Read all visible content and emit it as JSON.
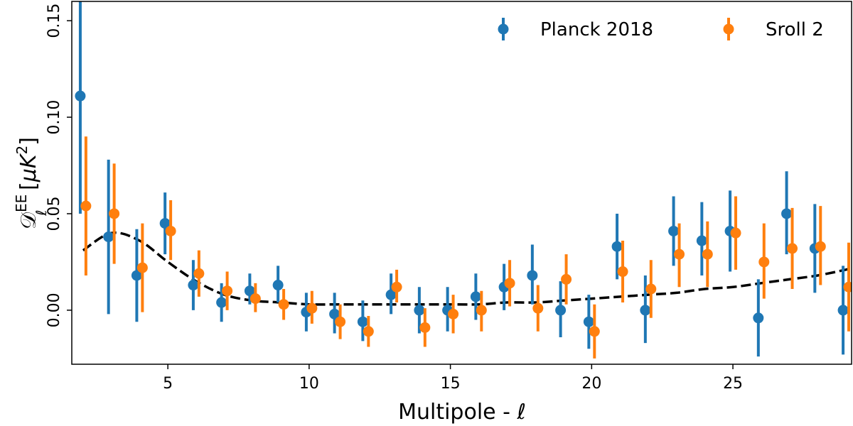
{
  "chart_data": {
    "type": "scatter",
    "title": "",
    "xlabel": "Multipole - ℓ",
    "ylabel": "𝒟ℓ^EE [μK²]",
    "ylabel_parts": {
      "symbol": "𝒟",
      "sub": "ℓ",
      "sup": "EE",
      "unit_open": " [",
      "unit_mu": "μK",
      "unit_sup": "2",
      "unit_close": "]"
    },
    "xlim": [
      1.6,
      29.2
    ],
    "ylim": [
      -0.028,
      0.16
    ],
    "xticks": [
      5,
      10,
      15,
      20,
      25
    ],
    "xtick_labels": [
      "5",
      "10",
      "15",
      "20",
      "25"
    ],
    "yticks": [
      0.0,
      0.05,
      0.1,
      0.15
    ],
    "ytick_labels": [
      "0.00",
      "0.05",
      "0.10",
      "0.15"
    ],
    "legend_position": "top-right",
    "series": [
      {
        "name": "Planck 2018",
        "color": "#1f77b4",
        "x_offset": -0.1,
        "ell": [
          2,
          3,
          4,
          5,
          6,
          7,
          8,
          9,
          10,
          11,
          12,
          13,
          14,
          15,
          16,
          17,
          18,
          19,
          20,
          21,
          22,
          23,
          24,
          25,
          26,
          27,
          28,
          29
        ],
        "values": [
          0.111,
          0.038,
          0.018,
          0.045,
          0.013,
          0.004,
          0.01,
          0.013,
          -0.001,
          -0.002,
          -0.006,
          0.008,
          0.0,
          0.0,
          0.007,
          0.012,
          0.018,
          0.0,
          -0.006,
          0.033,
          0.0,
          0.041,
          0.036,
          0.041,
          -0.004,
          0.05,
          0.032,
          0.0
        ],
        "err_low": [
          0.061,
          0.04,
          0.024,
          0.016,
          0.013,
          0.01,
          0.007,
          0.009,
          0.01,
          0.01,
          0.01,
          0.01,
          0.012,
          0.011,
          0.012,
          0.012,
          0.015,
          0.014,
          0.014,
          0.017,
          0.017,
          0.018,
          0.018,
          0.021,
          0.02,
          0.021,
          0.023,
          0.023
        ],
        "err_high": [
          0.059,
          0.04,
          0.024,
          0.016,
          0.013,
          0.01,
          0.009,
          0.01,
          0.01,
          0.011,
          0.011,
          0.011,
          0.012,
          0.012,
          0.012,
          0.012,
          0.016,
          0.015,
          0.014,
          0.017,
          0.018,
          0.018,
          0.02,
          0.021,
          0.02,
          0.022,
          0.023,
          0.023
        ]
      },
      {
        "name": "Sroll 2",
        "color": "#ff7f0e",
        "x_offset": 0.1,
        "ell": [
          2,
          3,
          4,
          5,
          6,
          7,
          8,
          9,
          10,
          11,
          12,
          13,
          14,
          15,
          16,
          17,
          18,
          19,
          20,
          21,
          22,
          23,
          24,
          25,
          26,
          27,
          28,
          29
        ],
        "values": [
          0.054,
          0.05,
          0.022,
          0.041,
          0.019,
          0.01,
          0.006,
          0.003,
          0.001,
          -0.006,
          -0.011,
          0.012,
          -0.009,
          -0.002,
          0.0,
          0.014,
          0.001,
          0.016,
          -0.011,
          0.02,
          0.011,
          0.029,
          0.029,
          0.04,
          0.025,
          0.032,
          0.033,
          0.012
        ],
        "err_low": [
          0.036,
          0.026,
          0.023,
          0.015,
          0.012,
          0.01,
          0.007,
          0.008,
          0.008,
          0.009,
          0.008,
          0.008,
          0.01,
          0.01,
          0.011,
          0.012,
          0.012,
          0.013,
          0.014,
          0.016,
          0.015,
          0.017,
          0.017,
          0.019,
          0.019,
          0.021,
          0.02,
          0.023
        ],
        "err_high": [
          0.036,
          0.026,
          0.023,
          0.016,
          0.012,
          0.01,
          0.008,
          0.008,
          0.009,
          0.009,
          0.008,
          0.009,
          0.01,
          0.01,
          0.01,
          0.012,
          0.012,
          0.013,
          0.014,
          0.016,
          0.015,
          0.016,
          0.017,
          0.019,
          0.02,
          0.021,
          0.021,
          0.023
        ]
      }
    ],
    "model_curve": {
      "name": "model",
      "color": "#000000",
      "style": "dashed",
      "ell": [
        2,
        3,
        4,
        5,
        6,
        7,
        8,
        9,
        10,
        11,
        12,
        13,
        14,
        15,
        16,
        17,
        18,
        19,
        20,
        21,
        22,
        23,
        24,
        25,
        26,
        27,
        28,
        29,
        29.2
      ],
      "values": [
        0.031,
        0.04,
        0.036,
        0.025,
        0.015,
        0.008,
        0.005,
        0.004,
        0.003,
        0.003,
        0.003,
        0.003,
        0.003,
        0.003,
        0.003,
        0.004,
        0.004,
        0.005,
        0.006,
        0.007,
        0.008,
        0.009,
        0.011,
        0.012,
        0.014,
        0.016,
        0.018,
        0.021,
        0.022
      ]
    }
  }
}
